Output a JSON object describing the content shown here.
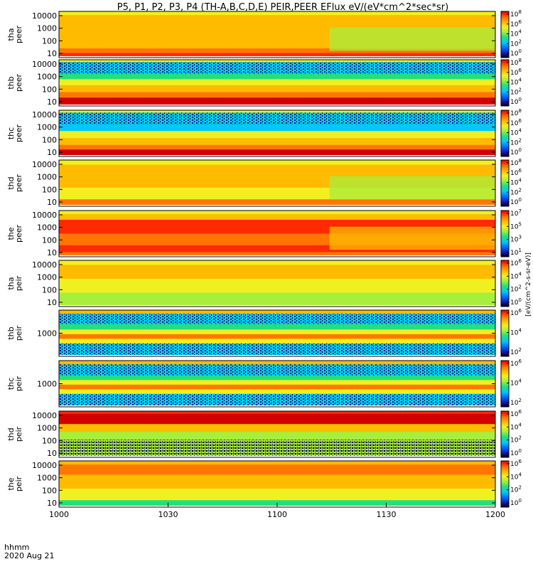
{
  "chart_data": {
    "type": "heatmap",
    "title": "P5, P1, P2, P3, P4 (TH-A,B,C,D,E) PEIR,PEER EFlux eV/(eV*cm^2*sec*sr)",
    "xlabel": "hhmm",
    "date_label": "2020 Aug 21",
    "x_ticks": [
      "1000",
      "1030",
      "1100",
      "1130",
      "1200"
    ],
    "xlim_minutes": [
      0,
      120
    ],
    "colorbar_unit": "[eV/(cm^2-s-sr-eV)]",
    "colormap": [
      "#000000",
      "#1a10a0",
      "#0066ff",
      "#00c8ff",
      "#22e07a",
      "#a8ee3c",
      "#f0f020",
      "#ffbb00",
      "#ff7700",
      "#ff2a00",
      "#d40000"
    ],
    "panels": [
      {
        "probe": "tha",
        "species": "peer",
        "label": "tha peer",
        "yticks": [
          "10000",
          "1000",
          "100",
          "10"
        ],
        "cbar_max": "10^8",
        "cbar_ticks": [
          "10^8",
          "10^6",
          "10^4",
          "10^2",
          "10^0"
        ]
      },
      {
        "probe": "thb",
        "species": "peer",
        "label": "thb peer",
        "yticks": [
          "10000",
          "1000",
          "100",
          "10"
        ],
        "cbar_max": "10^8",
        "cbar_ticks": [
          "10^8",
          "10^6",
          "10^4",
          "10^2",
          "10^0"
        ]
      },
      {
        "probe": "thc",
        "species": "peer",
        "label": "thc peer",
        "yticks": [
          "10000",
          "1000",
          "100",
          "10"
        ],
        "cbar_max": "10^8",
        "cbar_ticks": [
          "10^8",
          "10^6",
          "10^4",
          "10^2",
          "10^0"
        ]
      },
      {
        "probe": "thd",
        "species": "peer",
        "label": "thd peer",
        "yticks": [
          "10000",
          "1000",
          "100",
          "10"
        ],
        "cbar_max": "10^8",
        "cbar_ticks": [
          "10^8",
          "10^6",
          "10^4",
          "10^2",
          "10^0"
        ]
      },
      {
        "probe": "the",
        "species": "peer",
        "label": "the peer",
        "yticks": [
          "10000",
          "1000",
          "100",
          "10"
        ],
        "cbar_max": "10^7",
        "cbar_ticks": [
          "10^7",
          "10^5",
          "10^3",
          "10^1"
        ]
      },
      {
        "probe": "tha",
        "species": "peir",
        "label": "tha peir",
        "yticks": [
          "10000",
          "1000",
          "100",
          "10"
        ],
        "cbar_max": "10^6",
        "cbar_ticks": [
          "10^6",
          "10^4",
          "10^2",
          "10^0"
        ]
      },
      {
        "probe": "thb",
        "species": "peir",
        "label": "thb peir",
        "yticks": [
          "1000"
        ],
        "cbar_max": "10^6",
        "cbar_ticks": [
          "10^6",
          "10^4",
          "10^2"
        ]
      },
      {
        "probe": "thc",
        "species": "peir",
        "label": "thc peir",
        "yticks": [
          "1000"
        ],
        "cbar_max": "10^6",
        "cbar_ticks": [
          "10^6",
          "10^4",
          "10^2"
        ]
      },
      {
        "probe": "thd",
        "species": "peir",
        "label": "thd peir",
        "yticks": [
          "10000",
          "1000",
          "100",
          "10"
        ],
        "cbar_max": "10^6",
        "cbar_ticks": [
          "10^6",
          "10^4",
          "10^2",
          "10^0"
        ]
      },
      {
        "probe": "the",
        "species": "peir",
        "label": "the peir",
        "yticks": [
          "10000",
          "1000",
          "100",
          "10"
        ],
        "cbar_max": "10^6",
        "cbar_ticks": [
          "10^6",
          "10^4",
          "10^2",
          "10^0"
        ]
      }
    ]
  }
}
